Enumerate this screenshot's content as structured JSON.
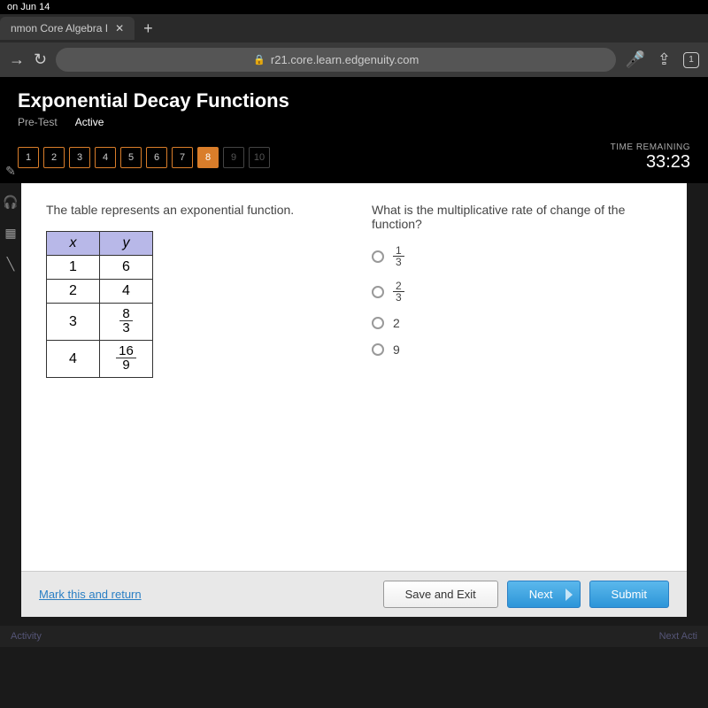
{
  "status": {
    "date": "on Jun 14"
  },
  "tab": {
    "title": "nmon Core Algebra I",
    "add": "+"
  },
  "nav": {
    "url": "r21.core.learn.edgenuity.com",
    "tabCount": "1"
  },
  "header": {
    "title": "Exponential Decay Functions",
    "sub1": "Pre-Test",
    "sub2": "Active"
  },
  "questions": {
    "items": [
      "1",
      "2",
      "3",
      "4",
      "5",
      "6",
      "7",
      "8",
      "9",
      "10"
    ],
    "currentIndex": 7,
    "doneUntil": 7
  },
  "timer": {
    "label": "TIME REMAINING",
    "value": "33:23"
  },
  "left": {
    "prompt": "The table represents an exponential function.",
    "table": {
      "headers": [
        "x",
        "y"
      ],
      "rows": [
        {
          "x": "1",
          "y": "6",
          "frac": false
        },
        {
          "x": "2",
          "y": "4",
          "frac": false
        },
        {
          "x": "3",
          "num": "8",
          "den": "3",
          "frac": true
        },
        {
          "x": "4",
          "num": "16",
          "den": "9",
          "frac": true
        }
      ]
    }
  },
  "right": {
    "prompt": "What is the multiplicative rate of change of the function?",
    "options": [
      {
        "frac": true,
        "num": "1",
        "den": "3"
      },
      {
        "frac": true,
        "num": "2",
        "den": "3"
      },
      {
        "frac": false,
        "text": "2"
      },
      {
        "frac": false,
        "text": "9"
      }
    ]
  },
  "footer": {
    "mark": "Mark this and return",
    "save": "Save and Exit",
    "next": "Next",
    "submit": "Submit"
  },
  "bottom": {
    "left": "Activity",
    "right": "Next Acti"
  }
}
